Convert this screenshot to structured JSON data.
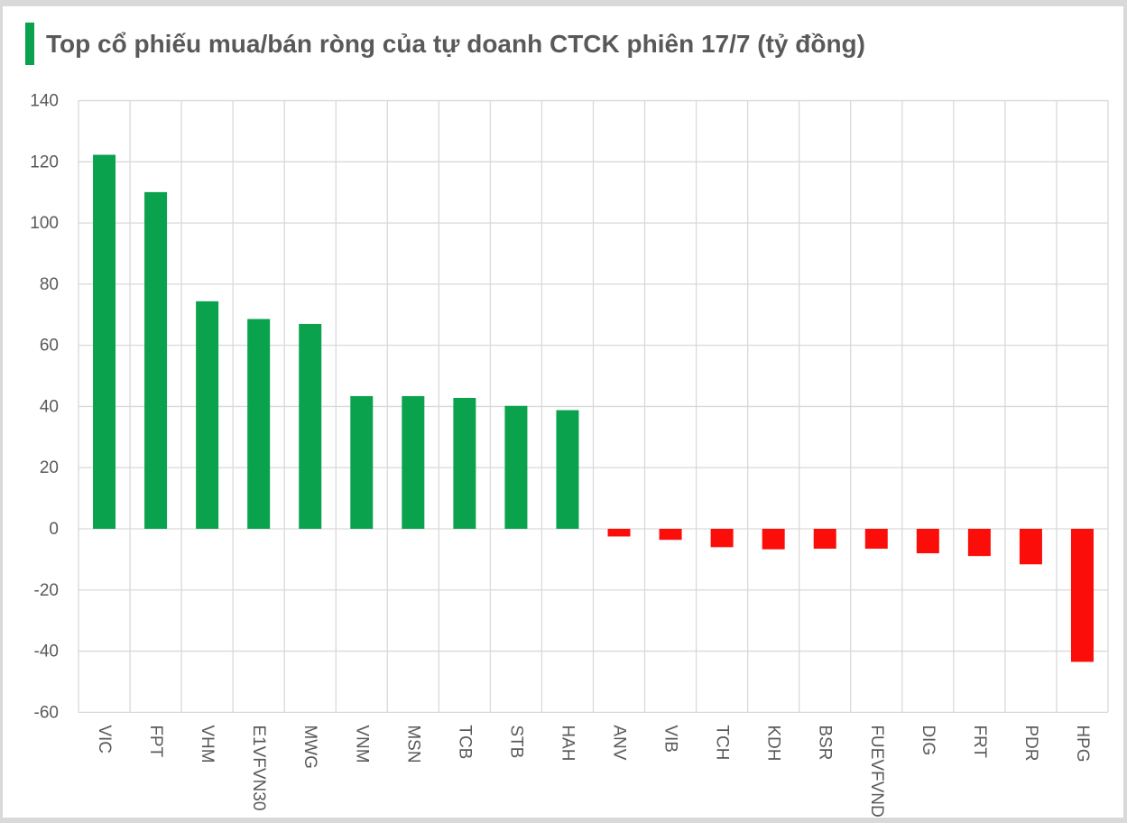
{
  "title": "Top cổ phiếu mua/bán ròng của tự doanh CTCK phiên 17/7 (tỷ đồng)",
  "chart_data": {
    "type": "bar",
    "title": "Top cổ phiếu mua/bán ròng của tự doanh CTCK phiên 17/7 (tỷ đồng)",
    "categories": [
      "VIC",
      "FPT",
      "VHM",
      "E1VFVN30",
      "MWG",
      "VNM",
      "MSN",
      "TCB",
      "STB",
      "HAH",
      "ANV",
      "VIB",
      "TCH",
      "KDH",
      "BSR",
      "FUEVFVND",
      "DIG",
      "FRT",
      "PDR",
      "HPG"
    ],
    "values": [
      122.3,
      110.1,
      74.4,
      68.6,
      67.0,
      43.4,
      43.4,
      42.8,
      40.2,
      38.8,
      -2.5,
      -3.6,
      -6.0,
      -6.7,
      -6.5,
      -6.5,
      -8.0,
      -8.9,
      -11.6,
      -43.5
    ],
    "unit": "tỷ đồng",
    "xlabel": "",
    "ylabel": "",
    "ylim": [
      -60,
      140
    ],
    "ytick_step": 20,
    "ytick_labels": [
      "-60",
      "-40",
      "-20",
      "0",
      "20",
      "40",
      "60",
      "80",
      "100",
      "120",
      "140"
    ],
    "grid": true,
    "legend_position": "none",
    "positive_color": "#0ba24e",
    "negative_color": "#fb0d0a",
    "gridline_color": "#d9d9d9",
    "label_color": "#595959",
    "accent_color": "#0ba24e"
  }
}
